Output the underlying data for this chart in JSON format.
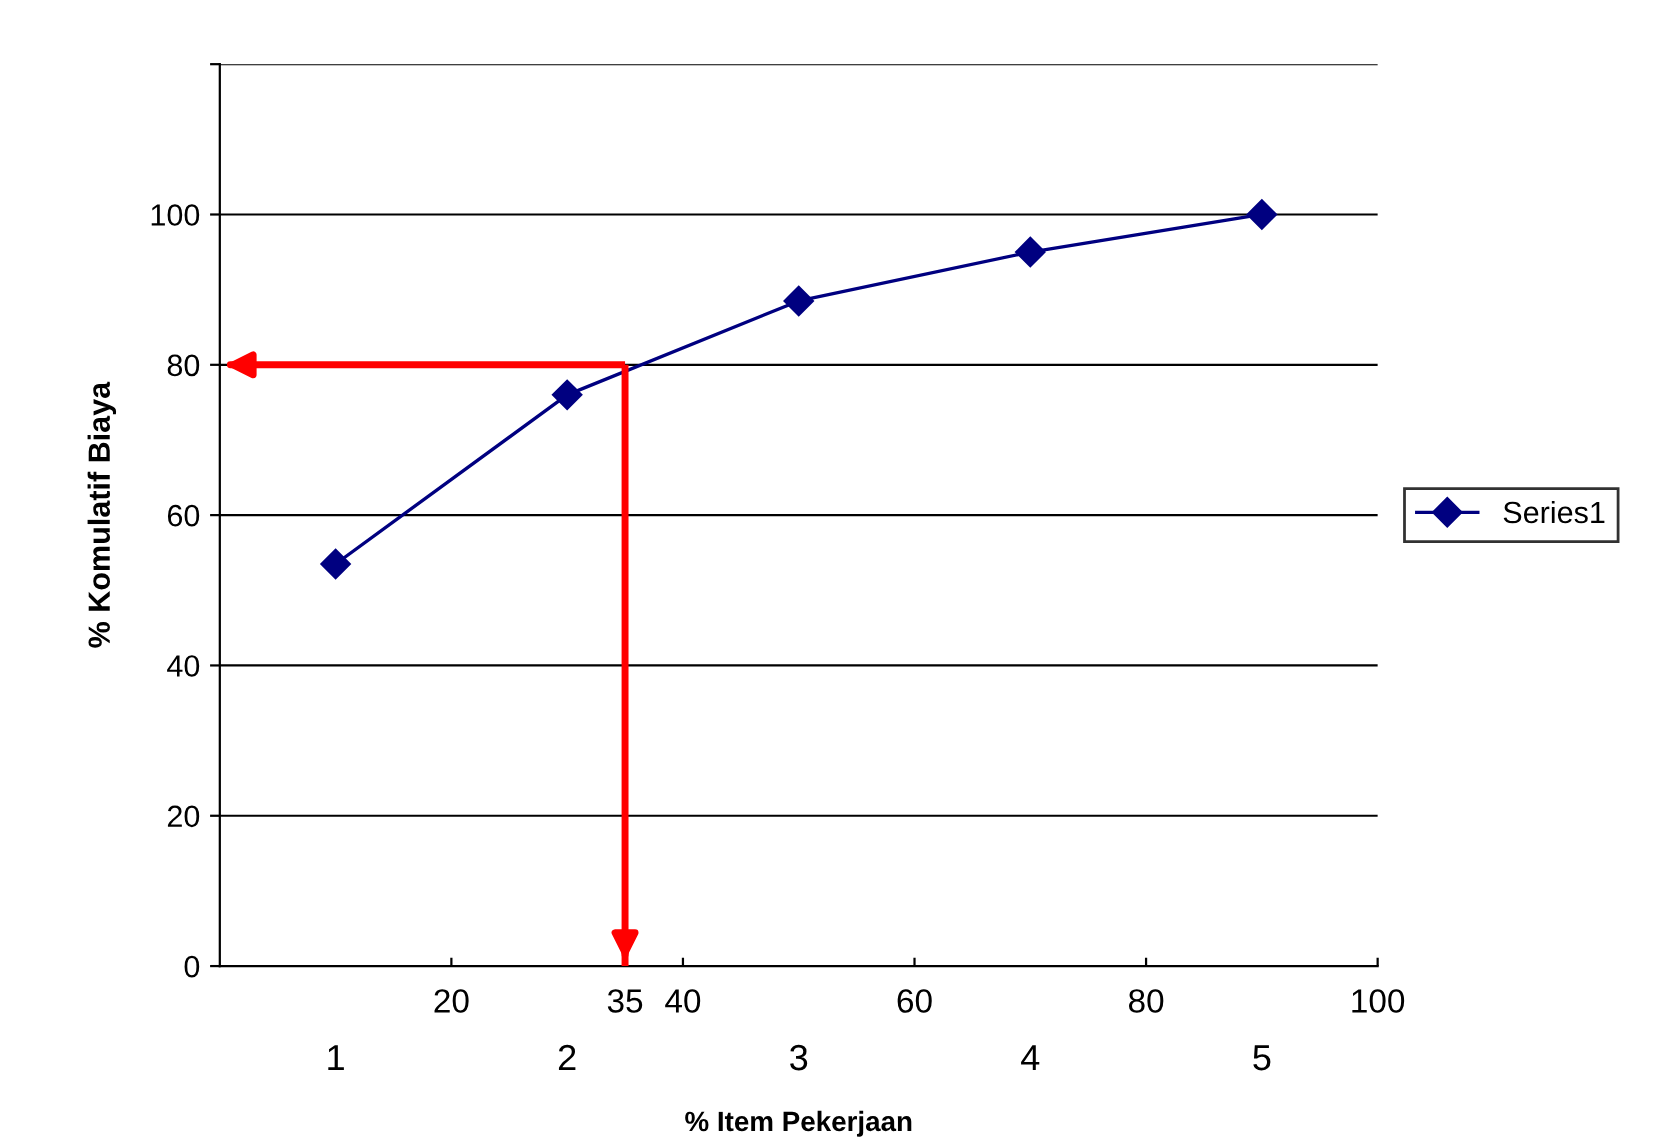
{
  "chart_data": {
    "type": "line",
    "xlabel": "% Item Pekerjaan",
    "ylabel": "% Komulatif Biaya",
    "categories": [
      "1",
      "2",
      "3",
      "4",
      "5"
    ],
    "series": [
      {
        "name": "Series1",
        "color": "#000080",
        "values": [
          53.5,
          76,
          88.5,
          95,
          100
        ]
      }
    ],
    "x2lim": [
      0,
      100
    ],
    "x2ticks": [
      20,
      35,
      40,
      60,
      80,
      100
    ],
    "ylim": [
      0,
      120
    ],
    "yticks": [
      0,
      20,
      40,
      60,
      80,
      100,
      {
        "value": 120,
        "label": null
      }
    ],
    "ref_lines": [
      {
        "axis": "y",
        "value": 80,
        "color": "#ff0000"
      },
      {
        "axis": "x2",
        "value": 35,
        "color": "#ff0000"
      }
    ],
    "grid": "y",
    "legend": "right",
    "marker": "diamond",
    "line_style": "solid"
  }
}
